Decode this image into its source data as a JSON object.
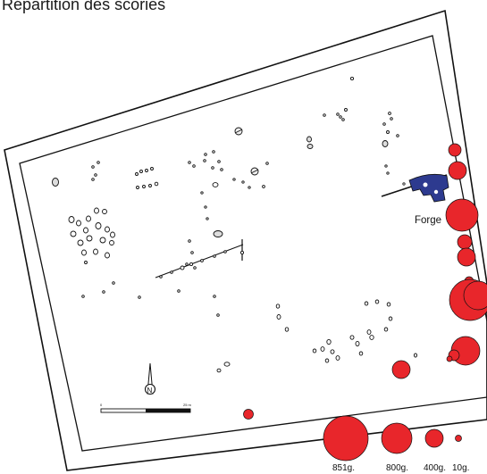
{
  "title": "Répartition des scories",
  "map": {
    "forge_label": "Forge",
    "north_label": "N",
    "scale_start": "0",
    "scale_end": "25 m",
    "slag_color": "#e8262b",
    "forge_color": "#2d3a8f"
  },
  "legend": [
    {
      "label": "851g."
    },
    {
      "label": "800g."
    },
    {
      "label": "400g."
    },
    {
      "label": "10g."
    }
  ]
}
